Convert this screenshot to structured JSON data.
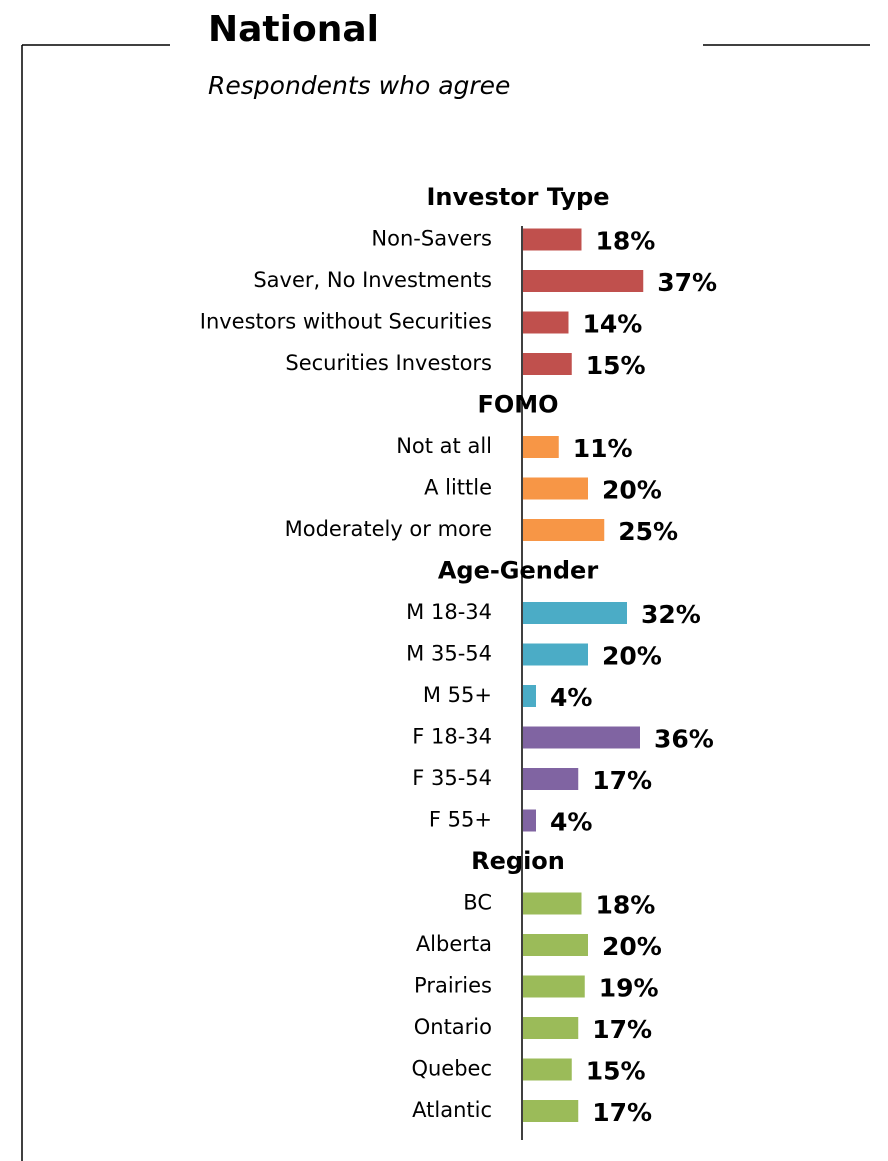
{
  "chart_data": {
    "type": "bar",
    "title": "National",
    "subtitle": "Respondents who agree",
    "xlim": [
      0,
      40
    ],
    "groups": [
      {
        "name": "Investor Type",
        "color": "#c0504d",
        "categories": [
          "Non-Savers",
          "Saver, No Investments",
          "Investors without Securities",
          "Securities Investors"
        ],
        "values": [
          18,
          37,
          14,
          15
        ],
        "value_labels": [
          "18%",
          "37%",
          "14%",
          "15%"
        ]
      },
      {
        "name": "FOMO",
        "color": "#f79646",
        "categories": [
          "Not at all",
          "A little",
          "Moderately or more"
        ],
        "values": [
          11,
          20,
          25
        ],
        "value_labels": [
          "11%",
          "20%",
          "25%"
        ]
      },
      {
        "name": "Age-Gender",
        "colors": [
          "#4bacc6",
          "#4bacc6",
          "#4bacc6",
          "#8064a2",
          "#8064a2",
          "#8064a2"
        ],
        "categories": [
          "M 18-34",
          "M 35-54",
          "M 55+",
          "F 18-34",
          "F 35-54",
          "F 55+"
        ],
        "values": [
          32,
          20,
          4,
          36,
          17,
          4
        ],
        "value_labels": [
          "32%",
          "20%",
          "4%",
          "36%",
          "17%",
          "4%"
        ]
      },
      {
        "name": "Region",
        "color": "#9bbb59",
        "categories": [
          "BC",
          "Alberta",
          "Prairies",
          "Ontario",
          "Quebec",
          "Atlantic"
        ],
        "values": [
          18,
          20,
          19,
          17,
          15,
          17
        ],
        "value_labels": [
          "18%",
          "20%",
          "19%",
          "17%",
          "15%",
          "17%"
        ]
      }
    ]
  }
}
